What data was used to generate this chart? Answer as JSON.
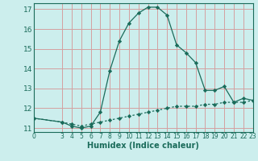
{
  "xlabel": "Humidex (Indice chaleur)",
  "bg_color": "#cceeed",
  "grid_color": "#d4a0a0",
  "line_color": "#1a6b5a",
  "marker_color": "#1a6b5a",
  "curve1_x": [
    0,
    3,
    4,
    5,
    6,
    7,
    8,
    9,
    10,
    11,
    12,
    13,
    14,
    15,
    16,
    17,
    18,
    19,
    20,
    21,
    22,
    23
  ],
  "curve1_y": [
    11.5,
    11.3,
    11.1,
    11.0,
    11.1,
    11.8,
    13.9,
    15.4,
    16.3,
    16.8,
    17.1,
    17.1,
    16.7,
    15.2,
    14.8,
    14.3,
    12.9,
    12.9,
    13.1,
    12.3,
    12.5,
    12.4
  ],
  "curve2_x": [
    0,
    3,
    4,
    5,
    6,
    7,
    8,
    9,
    10,
    11,
    12,
    13,
    14,
    15,
    16,
    17,
    18,
    19,
    20,
    21,
    22,
    23
  ],
  "curve2_y": [
    11.5,
    11.3,
    11.2,
    11.1,
    11.2,
    11.3,
    11.4,
    11.5,
    11.6,
    11.7,
    11.8,
    11.9,
    12.0,
    12.1,
    12.1,
    12.1,
    12.2,
    12.2,
    12.3,
    12.3,
    12.3,
    12.4
  ],
  "xlim": [
    0,
    23
  ],
  "ylim": [
    10.8,
    17.3
  ],
  "yticks": [
    11,
    12,
    13,
    14,
    15,
    16,
    17
  ],
  "xticks": [
    0,
    3,
    4,
    5,
    6,
    7,
    8,
    9,
    10,
    11,
    12,
    13,
    14,
    15,
    16,
    17,
    18,
    19,
    20,
    21,
    22,
    23
  ]
}
